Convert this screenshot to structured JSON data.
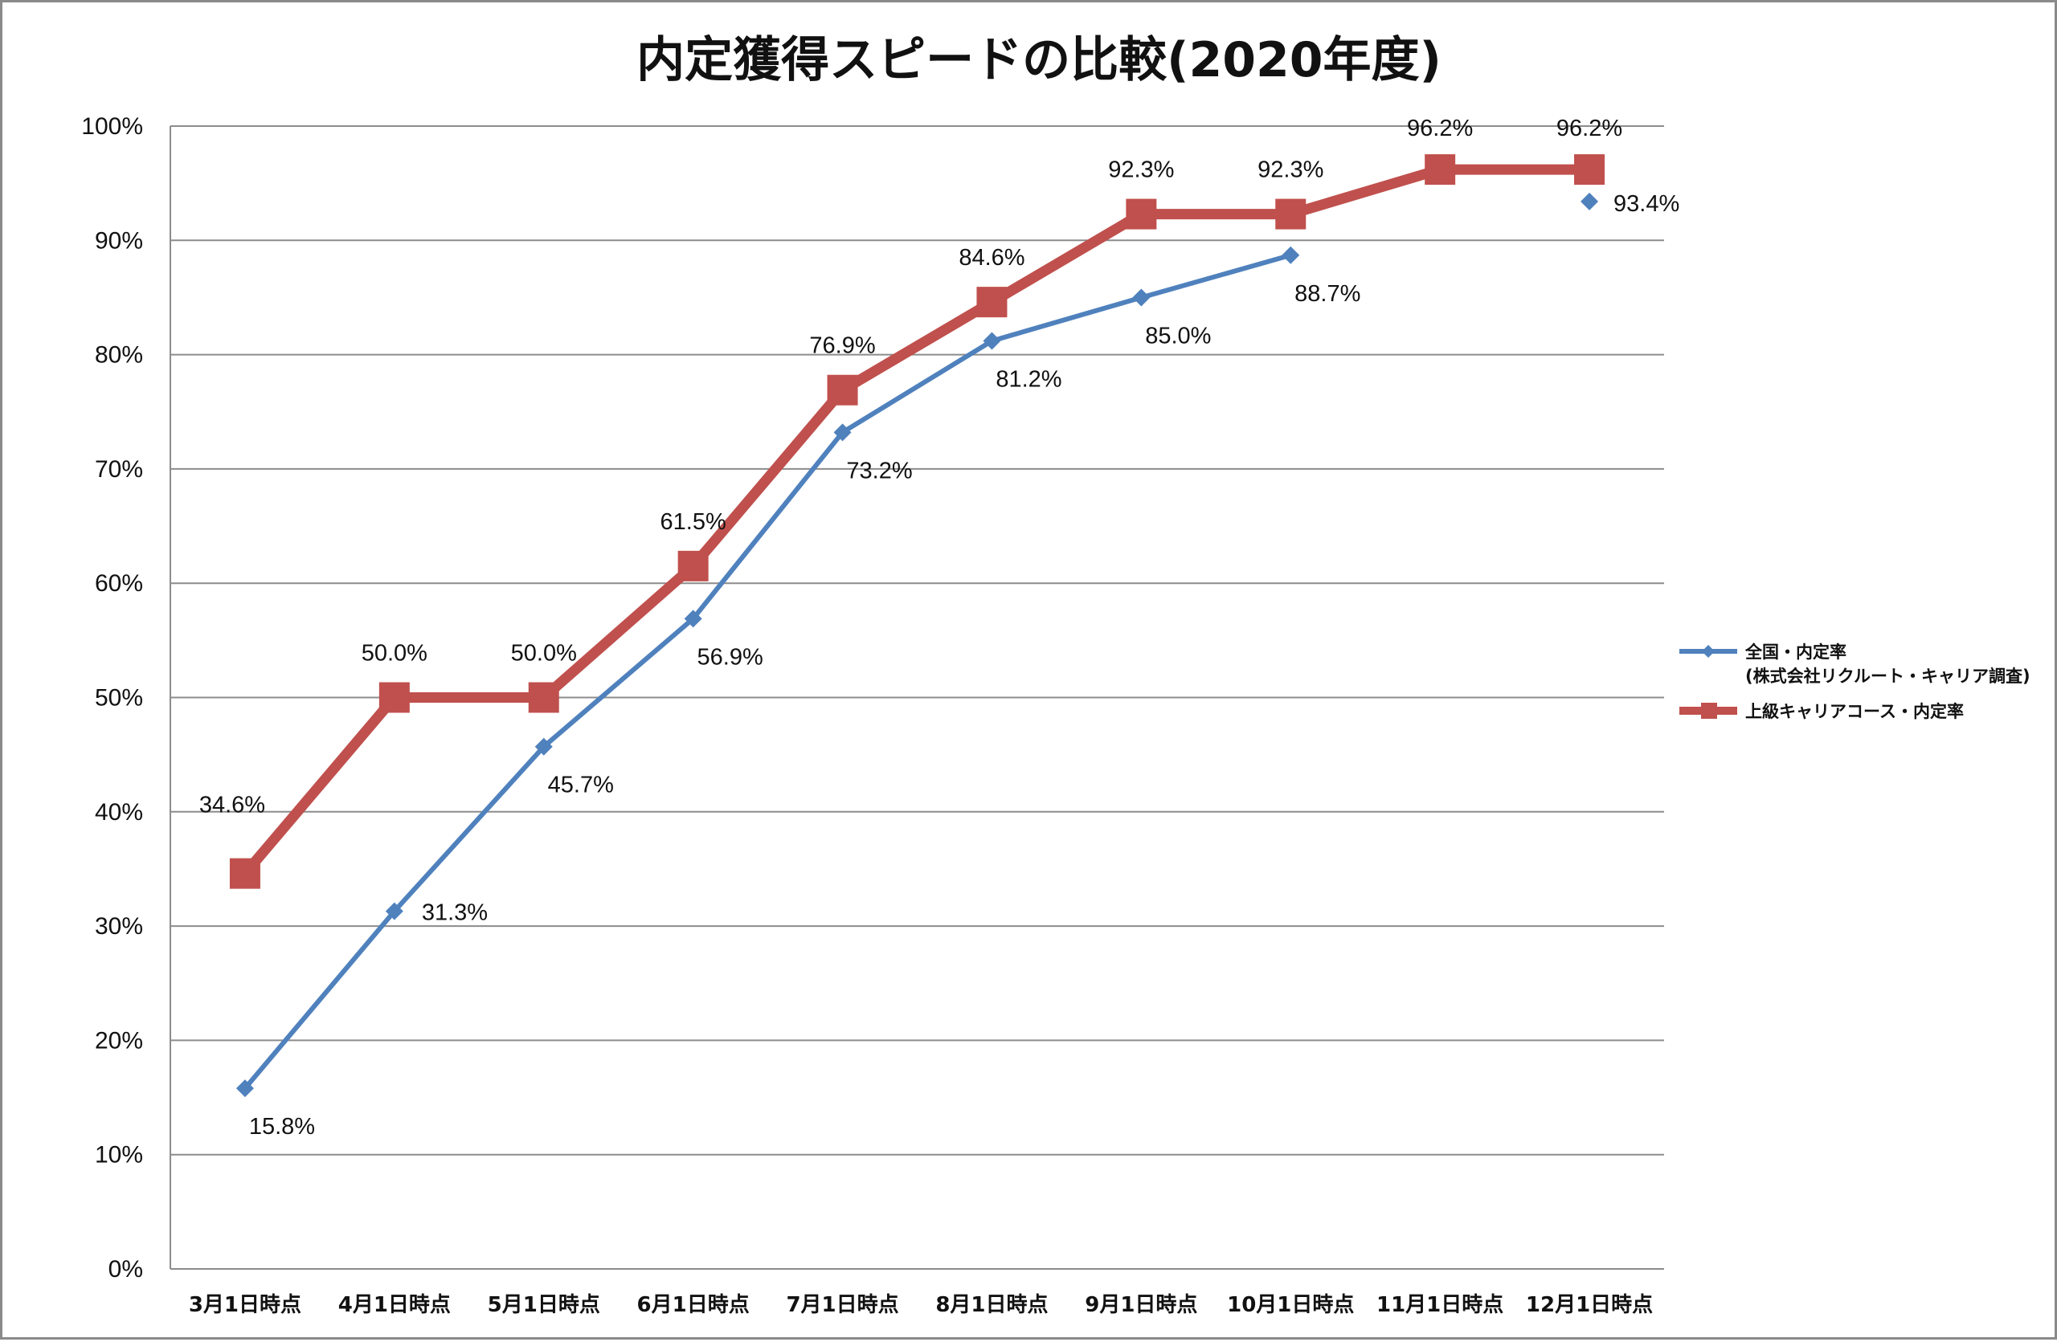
{
  "chart_data": {
    "type": "line",
    "title": "内定獲得スピードの比較(2020年度)",
    "categories": [
      "3月1日時点",
      "4月1日時点",
      "5月1日時点",
      "6月1日時点",
      "7月1日時点",
      "8月1日時点",
      "9月1日時点",
      "10月1日時点",
      "11月1日時点",
      "12月1日時点"
    ],
    "ylim": [
      0,
      100
    ],
    "yticks": [
      "0%",
      "10%",
      "20%",
      "30%",
      "40%",
      "50%",
      "60%",
      "70%",
      "80%",
      "90%",
      "100%"
    ],
    "grid": true,
    "legend_position": "right",
    "series": [
      {
        "name": "全国・内定率",
        "name_line2": "(株式会社リクルート・キャリア調査)",
        "color": "#4F81BD",
        "marker": "diamond",
        "values": [
          15.8,
          31.3,
          45.7,
          56.9,
          73.2,
          81.2,
          85.0,
          88.7,
          null,
          93.4
        ],
        "labels": [
          "15.8%",
          "31.3%",
          "45.7%",
          "56.9%",
          "73.2%",
          "81.2%",
          "85.0%",
          "88.7%",
          "",
          "93.4%"
        ]
      },
      {
        "name": "上級キャリアコース・内定率",
        "color": "#C0504D",
        "marker": "square",
        "values": [
          34.6,
          50.0,
          50.0,
          61.5,
          76.9,
          84.6,
          92.3,
          92.3,
          96.2,
          96.2
        ],
        "labels": [
          "34.6%",
          "50.0%",
          "50.0%",
          "61.5%",
          "76.9%",
          "84.6%",
          "92.3%",
          "92.3%",
          "96.2%",
          "96.2%"
        ]
      }
    ]
  }
}
